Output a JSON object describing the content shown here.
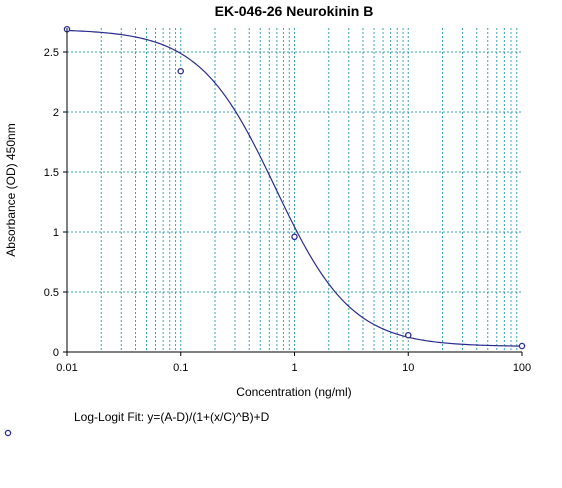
{
  "chart_data": {
    "type": "scatter",
    "title": "EK-046-26 Neurokinin B",
    "xlabel": "Concentration (ng/ml)",
    "ylabel": "Absorbance (OD) 450nm",
    "x_scale": "log",
    "xlim": [
      0.01,
      100
    ],
    "ylim": [
      0,
      2.7
    ],
    "x_ticks": [
      0.01,
      0.1,
      1,
      10,
      100
    ],
    "x_tick_labels": [
      "0.01",
      "0.1",
      "1",
      "10",
      "100"
    ],
    "y_ticks": [
      0,
      0.5,
      1,
      1.5,
      2,
      2.5
    ],
    "y_tick_labels": [
      "0",
      "0.5",
      "1",
      "1.5",
      "2",
      "2.5"
    ],
    "grid": true,
    "series": [
      {
        "x": [
          0.01,
          0.1,
          1,
          10,
          100
        ],
        "y": [
          2.69,
          2.34,
          0.96,
          0.14,
          0.05
        ]
      }
    ],
    "fit": {
      "type": "log-logit",
      "A": 2.69,
      "B": 1.3,
      "C": 0.68,
      "D": 0.045
    },
    "fit_label": "Log-Logit Fit: y=(A-D)/(1+(x/C)^B)+D",
    "colors": {
      "curve": "#2b2b8f",
      "markers": "#2b2b8f",
      "grid": "#3aa5b0",
      "axis": "#000000"
    }
  }
}
